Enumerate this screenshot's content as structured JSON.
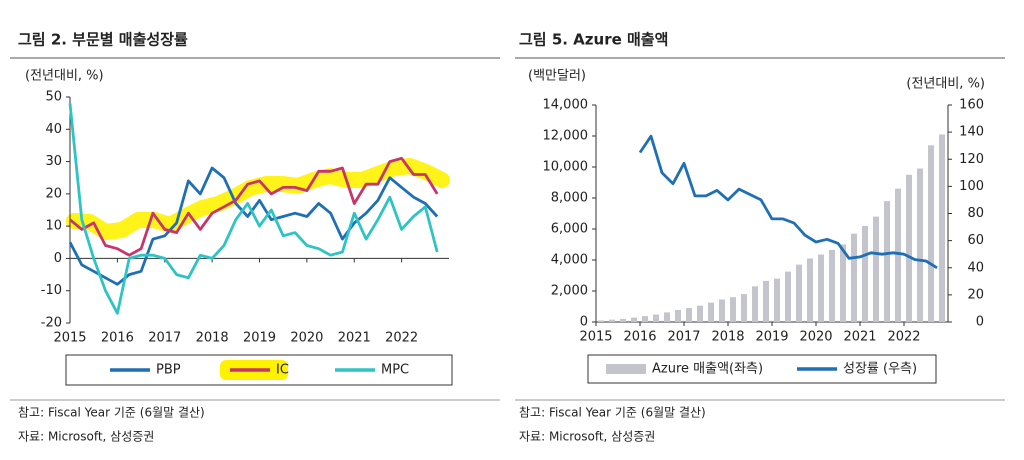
{
  "chart_data": [
    {
      "type": "line",
      "title": "그림 2. 부문별 매출성장률",
      "ylabel": "(전년대비, %)",
      "x": [
        2015,
        2015.25,
        2015.5,
        2015.75,
        2016,
        2016.25,
        2016.5,
        2016.75,
        2017,
        2017.25,
        2017.5,
        2017.75,
        2018,
        2018.25,
        2018.5,
        2018.75,
        2019,
        2019.25,
        2019.5,
        2019.75,
        2020,
        2020.25,
        2020.5,
        2020.75,
        2021,
        2021.25,
        2021.5,
        2021.75,
        2022,
        2022.25,
        2022.5,
        2022.75
      ],
      "xlim": [
        2015,
        2023
      ],
      "xticks": [
        2015,
        2016,
        2017,
        2018,
        2019,
        2020,
        2021,
        2022
      ],
      "ylim": [
        -20,
        50
      ],
      "yticks": [
        -20,
        -10,
        0,
        10,
        20,
        30,
        40,
        50
      ],
      "series": [
        {
          "name": "PBP",
          "color": "#1f6fb4",
          "values": [
            5,
            -2,
            -4,
            -6,
            -8,
            -5,
            -4,
            6,
            7,
            11,
            24,
            20,
            28,
            25,
            17,
            13,
            18,
            12,
            13,
            14,
            13,
            17,
            14,
            6,
            11,
            14,
            18,
            25,
            22,
            19,
            17,
            13
          ]
        },
        {
          "name": "IC",
          "color": "#c8356b",
          "values": [
            12,
            9,
            11,
            4,
            3,
            1,
            3,
            14,
            9,
            8,
            14,
            9,
            14,
            16,
            18,
            23,
            24,
            20,
            22,
            22,
            21,
            27,
            27,
            28,
            17,
            23,
            23,
            30,
            31,
            26,
            26,
            20
          ]
        },
        {
          "name": "MPC",
          "color": "#2ec4c4",
          "values": [
            48,
            12,
            0,
            -10,
            -17,
            0,
            1,
            1,
            0,
            -5,
            -6,
            1,
            0,
            4,
            12,
            17,
            10,
            15,
            7,
            8,
            4,
            3,
            1,
            2,
            14,
            6,
            12,
            19,
            9,
            13,
            16,
            2
          ]
        }
      ],
      "notes": [
        "참고: Fiscal Year 기준 (6월말 결산)",
        "자료: Microsoft, 삼성증권"
      ]
    },
    {
      "type": "bar-line",
      "title": "그림 5. Azure 매출액",
      "ylabel": "(백만달러)",
      "y2label": "(전년대비, %)",
      "x": [
        2015,
        2015.25,
        2015.5,
        2015.75,
        2016,
        2016.25,
        2016.5,
        2016.75,
        2017,
        2017.25,
        2017.5,
        2017.75,
        2018,
        2018.25,
        2018.5,
        2018.75,
        2019,
        2019.25,
        2019.5,
        2019.75,
        2020,
        2020.25,
        2020.5,
        2020.75,
        2021,
        2021.25,
        2021.5,
        2021.75,
        2022,
        2022.25,
        2022.5,
        2022.75
      ],
      "xlim": [
        2015,
        2023
      ],
      "xticks": [
        2015,
        2016,
        2017,
        2018,
        2019,
        2020,
        2021,
        2022
      ],
      "ylim": [
        0,
        14000
      ],
      "yticks": [
        0,
        {
          "value": 2000,
          "label": "2,000"
        },
        {
          "value": 4000,
          "label": "4,000"
        },
        {
          "value": 6000,
          "label": "6,000"
        },
        {
          "value": 8000,
          "label": "8,000"
        },
        {
          "value": 10000,
          "label": "10,000"
        },
        {
          "value": 12000,
          "label": "12,000"
        },
        {
          "value": 14000,
          "label": "14,000"
        }
      ],
      "y2lim": [
        0,
        160
      ],
      "y2ticks": [
        0,
        20,
        40,
        60,
        80,
        100,
        120,
        140,
        160
      ],
      "series": [
        {
          "name": "Azure 매출액(좌측)",
          "color": "#c4c4cc",
          "values": [
            100,
            150,
            200,
            280,
            380,
            480,
            620,
            780,
            900,
            1050,
            1250,
            1450,
            1600,
            1800,
            2300,
            2650,
            2800,
            3250,
            3700,
            4100,
            4350,
            4650,
            5000,
            5700,
            6200,
            6800,
            7800,
            8600,
            9500,
            9900,
            11400,
            12100
          ]
        },
        {
          "name": "성장률 (우측)",
          "color": "#1f6fb4",
          "axis": "y2",
          "values": [
            null,
            null,
            null,
            null,
            125,
            137,
            110,
            102,
            117,
            93,
            93,
            97,
            90,
            98,
            94,
            90,
            76,
            76,
            73,
            64,
            59,
            61,
            58,
            47,
            48,
            51,
            50,
            51,
            50,
            46,
            45,
            40
          ]
        }
      ],
      "notes": [
        "참고: Fiscal Year 기준 (6월말 결산)",
        "자료: Microsoft, 삼성증권"
      ]
    }
  ]
}
